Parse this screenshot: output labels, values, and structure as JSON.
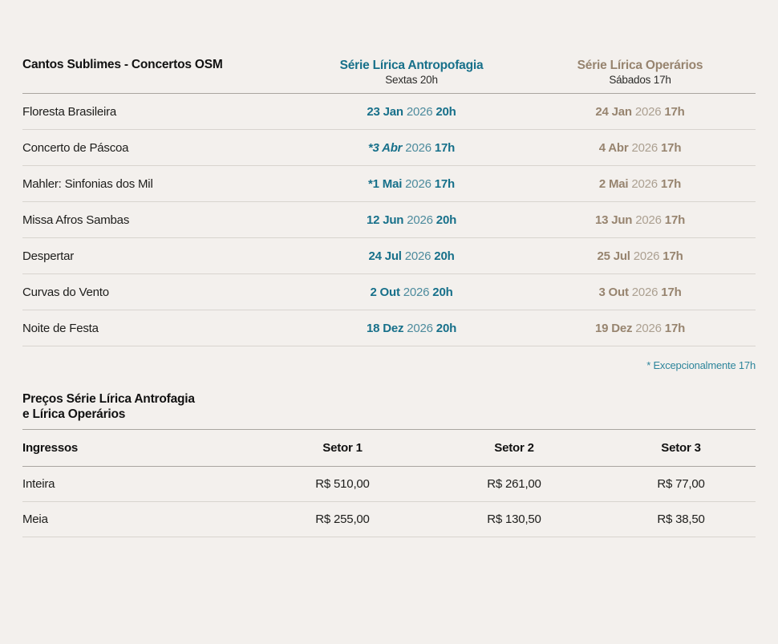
{
  "colors": {
    "background": "#f3f0ed",
    "ink": "#1b1b19",
    "teal": "#17708a",
    "teal_year": "#4d8b9d",
    "teal_note": "#2d859b",
    "brown": "#97846f",
    "brown_year": "#aca091",
    "divider_strong": "#a9a5a0",
    "divider_light": "#d8d4cf"
  },
  "concerts_table": {
    "title": "Cantos Sublimes - Concertos OSM",
    "columns": [
      {
        "label": "Série Lírica Antropofagia",
        "sublabel": "Sextas 20h",
        "color_key": "teal"
      },
      {
        "label": "Série Lírica Operários",
        "sublabel": "Sábados 17h",
        "color_key": "brown"
      }
    ],
    "rows": [
      {
        "name": "Floresta Brasileira",
        "a": {
          "date": "23 Jan",
          "year": "2026",
          "time": "20h",
          "italic": false
        },
        "b": {
          "date": "24 Jan",
          "year": "2026",
          "time": "17h"
        }
      },
      {
        "name": "Concerto de Páscoa",
        "a": {
          "date": "*3 Abr",
          "year": "2026",
          "time": "17h",
          "italic": true
        },
        "b": {
          "date": "4 Abr",
          "year": "2026",
          "time": "17h"
        }
      },
      {
        "name": "Mahler: Sinfonias dos Mil",
        "a": {
          "date": "*1 Mai",
          "year": "2026",
          "time": "17h",
          "italic": false
        },
        "b": {
          "date": "2 Mai",
          "year": "2026",
          "time": "17h"
        }
      },
      {
        "name": "Missa Afros Sambas",
        "a": {
          "date": "12 Jun",
          "year": "2026",
          "time": "20h",
          "italic": false
        },
        "b": {
          "date": "13 Jun",
          "year": "2026",
          "time": "17h"
        }
      },
      {
        "name": "Despertar",
        "a": {
          "date": "24 Jul",
          "year": "2026",
          "time": "20h",
          "italic": false
        },
        "b": {
          "date": "25 Jul",
          "year": "2026",
          "time": "17h"
        }
      },
      {
        "name": "Curvas do Vento",
        "a": {
          "date": "2 Out",
          "year": "2026",
          "time": "20h",
          "italic": false
        },
        "b": {
          "date": "3 Out",
          "year": "2026",
          "time": "17h"
        }
      },
      {
        "name": "Noite de Festa",
        "a": {
          "date": "18 Dez",
          "year": "2026",
          "time": "20h",
          "italic": false
        },
        "b": {
          "date": "19 Dez",
          "year": "2026",
          "time": "17h"
        }
      }
    ],
    "footnote": "* Excepcionalmente 17h"
  },
  "prices_table": {
    "title_line1": "Preços Série Lírica Antrofagia",
    "title_line2": "e Lírica Operários",
    "header": {
      "label": "Ingressos",
      "col1": "Setor 1",
      "col2": "Setor 2",
      "col3": "Setor 3"
    },
    "rows": [
      {
        "label": "Inteira",
        "values": [
          "R$ 510,00",
          "R$ 261,00",
          "R$ 77,00"
        ]
      },
      {
        "label": "Meia",
        "values": [
          "R$ 255,00",
          "R$ 130,50",
          "R$ 38,50"
        ]
      }
    ]
  }
}
